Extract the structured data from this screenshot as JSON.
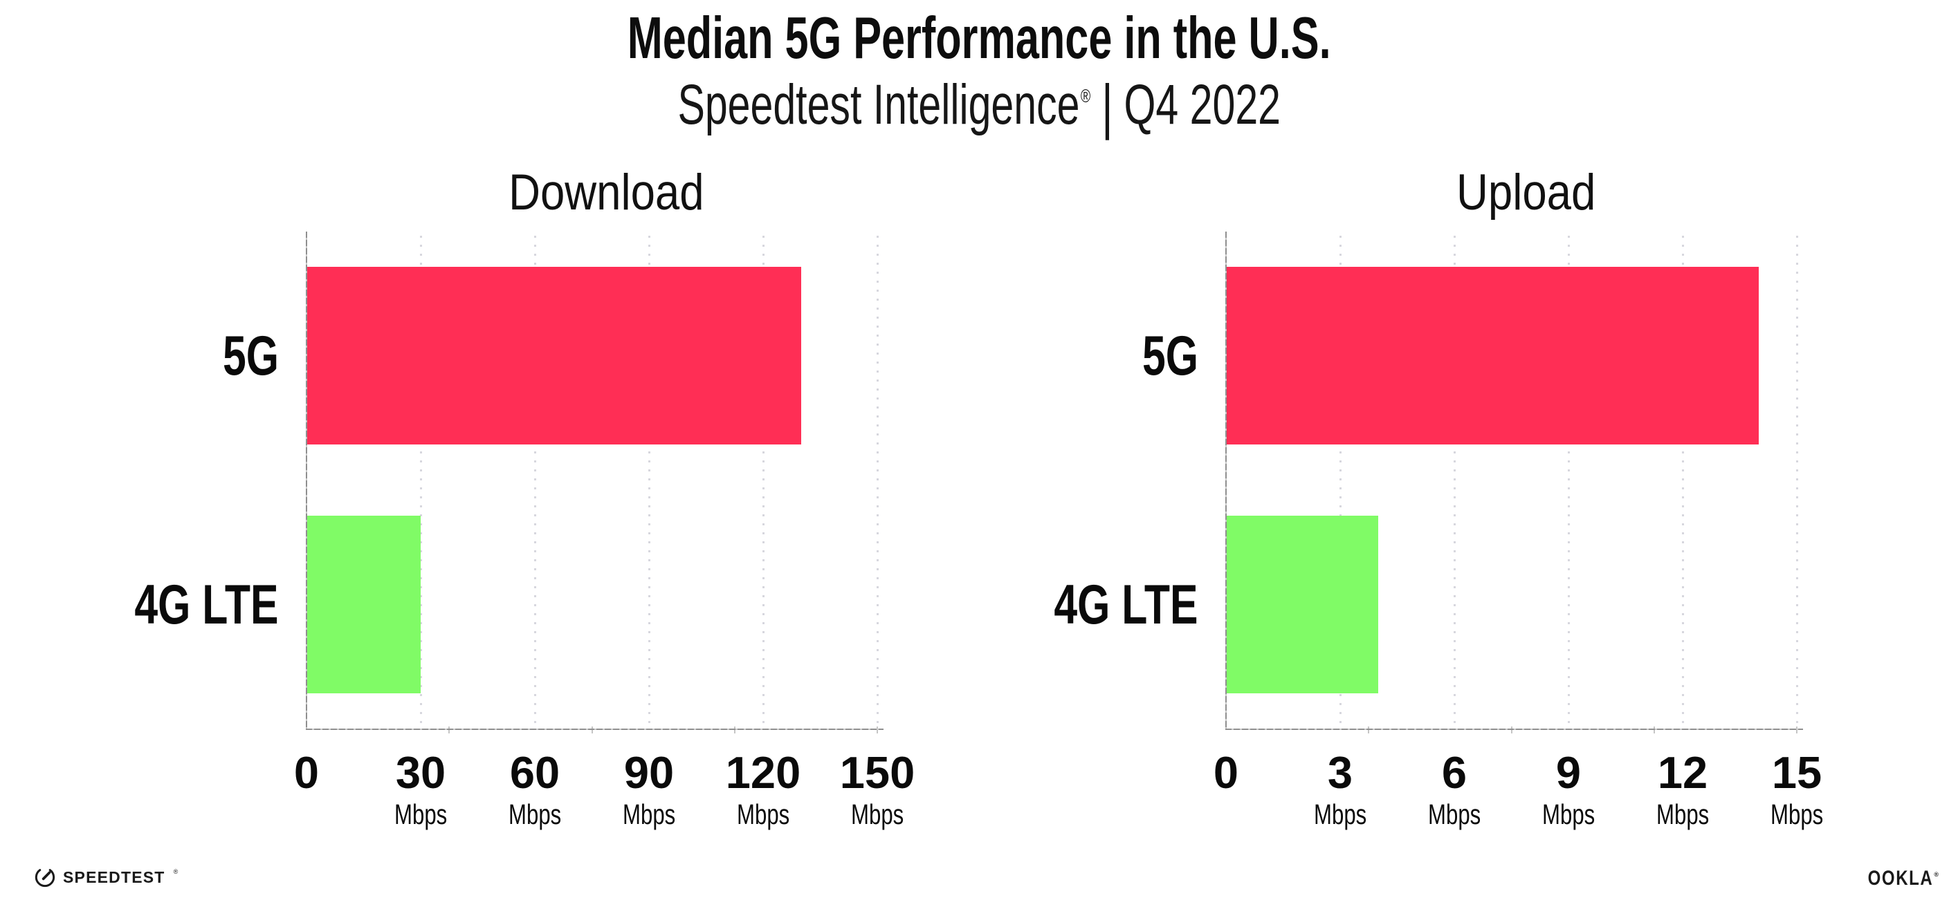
{
  "header": {
    "title": "Median 5G Performance in the U.S.",
    "subtitle_brand": "Speedtest Intelligence",
    "subtitle_registered": "®",
    "subtitle_separator": "|",
    "subtitle_period": "Q4 2022"
  },
  "chart_data": [
    {
      "type": "bar",
      "orientation": "horizontal",
      "title": "Download",
      "categories": [
        "5G",
        "4G LTE"
      ],
      "values": [
        130,
        30
      ],
      "unit": "Mbps",
      "xlim": [
        0,
        150
      ],
      "ticks": [
        0,
        30,
        60,
        90,
        120,
        150
      ],
      "tick_labels": [
        "0",
        "30",
        "60",
        "90",
        "120",
        "150"
      ],
      "bar_colors": [
        "#FF2E55",
        "#80FB66"
      ],
      "grid": "dotted vertical gridlines at each tick",
      "legend": "none"
    },
    {
      "type": "bar",
      "orientation": "horizontal",
      "title": "Upload",
      "categories": [
        "5G",
        "4G LTE"
      ],
      "values": [
        14,
        4
      ],
      "unit": "Mbps",
      "xlim": [
        0,
        15
      ],
      "ticks": [
        0,
        3,
        6,
        9,
        12,
        15
      ],
      "tick_labels": [
        "0",
        "3",
        "6",
        "9",
        "12",
        "15"
      ],
      "bar_colors": [
        "#FF2E55",
        "#80FB66"
      ],
      "grid": "dotted vertical gridlines at each tick",
      "legend": "none"
    }
  ],
  "footer": {
    "speedtest_logo_text": "SPEEDTEST",
    "speedtest_registered": "®",
    "ookla_logo_text": "OOKLA",
    "ookla_registered": "®"
  },
  "colors": {
    "bar_5g": "#FF2E55",
    "bar_4g_lte": "#80FB66",
    "axis_line": "#8F8F8F",
    "gridline": "#D7D7DE",
    "text": "#0D0D0D",
    "background": "#FFFFFF"
  }
}
